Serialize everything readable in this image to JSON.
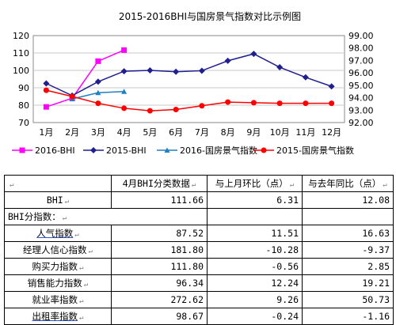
{
  "chart_data": {
    "type": "line",
    "title": "2015-2016BHI与国房景气指数对比示例图",
    "categories": [
      "1月",
      "2月",
      "3月",
      "4月",
      "5月",
      "6月",
      "7月",
      "8月",
      "9月",
      "10月",
      "11月",
      "12月"
    ],
    "y_left": {
      "ticks": [
        "70",
        "80",
        "90",
        "100",
        "110",
        "120"
      ],
      "range": [
        70,
        120
      ]
    },
    "y_right": {
      "ticks": [
        "92.00",
        "93.00",
        "94.00",
        "95.00",
        "96.00",
        "97.00",
        "98.00",
        "99.00"
      ],
      "range": [
        92,
        99
      ]
    },
    "legend_position": "bottom",
    "series": [
      {
        "name": "2016-BHI",
        "axis": "left",
        "color": "#ff00ff",
        "marker": "square",
        "values": [
          79,
          84,
          105.3,
          111.66,
          null,
          null,
          null,
          null,
          null,
          null,
          null,
          null
        ]
      },
      {
        "name": "2015-BHI",
        "axis": "left",
        "color": "#1f1f8f",
        "marker": "diamond",
        "values": [
          92.5,
          85.5,
          93.5,
          99.5,
          100,
          99.2,
          99.8,
          105.5,
          109.5,
          101.8,
          96,
          90.8
        ]
      },
      {
        "name": "2016-国房景气指数",
        "axis": "right",
        "color": "#1f7fbf",
        "marker": "triangle",
        "values": [
          null,
          93.9,
          94.4,
          94.5,
          null,
          null,
          null,
          null,
          null,
          null,
          null,
          null
        ]
      },
      {
        "name": "2015-国房景气指数",
        "axis": "right",
        "color": "#ff0000",
        "marker": "circle",
        "values": [
          94.6,
          94.1,
          93.55,
          93.15,
          92.95,
          93.05,
          93.35,
          93.65,
          93.6,
          93.55,
          93.55,
          93.55
        ]
      }
    ]
  },
  "table": {
    "header": [
      "4月BHI分类数据",
      "与上月环比（点）",
      "与去年同比（点）"
    ],
    "bhi": {
      "label": "BHI",
      "values": [
        "111.66",
        "6.31",
        "12.08"
      ]
    },
    "section_label": "BHI分指数：",
    "rows": [
      {
        "label": "人气指数",
        "values": [
          "87.52",
          "11.51",
          "16.63"
        ]
      },
      {
        "label": "经理人信心指数",
        "values": [
          "181.80",
          "-10.28",
          "-9.37"
        ]
      },
      {
        "label": "购买力指数",
        "values": [
          "111.80",
          "-0.56",
          "2.85"
        ]
      },
      {
        "label": "销售能力指数",
        "values": [
          "96.34",
          "12.24",
          "19.21"
        ]
      },
      {
        "label": "就业率指数",
        "values": [
          "272.62",
          "9.26",
          "50.73"
        ]
      },
      {
        "label": "出租率指数",
        "values": [
          "98.67",
          "-0.24",
          "-1.16"
        ]
      }
    ],
    "cell_mark": "↵"
  }
}
